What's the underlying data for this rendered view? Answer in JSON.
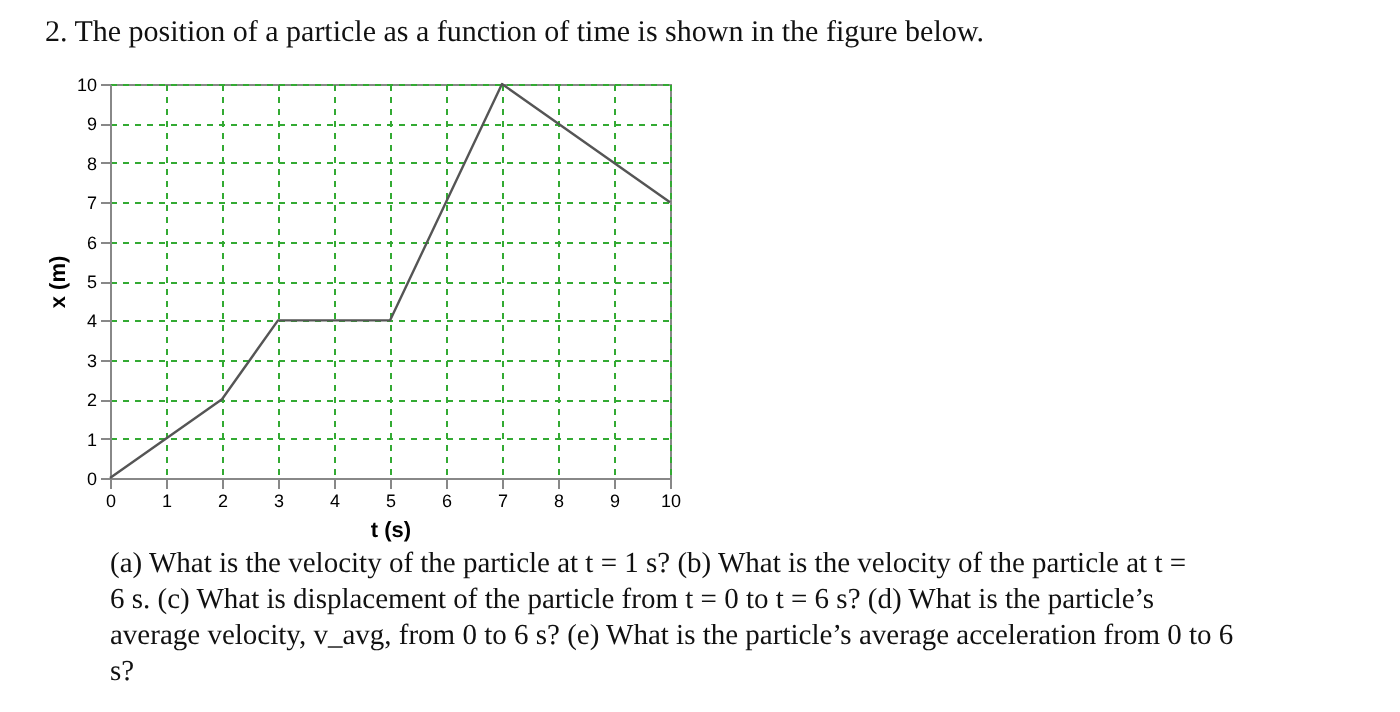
{
  "chart_data": {
    "type": "line",
    "title": "2. The position of a particle as a function of time is shown in the figure below.",
    "xlabel": "t (s)",
    "ylabel": "x (m)",
    "x": [
      0,
      2,
      3,
      5,
      7,
      10
    ],
    "series": [
      {
        "color": "#555555",
        "values": [
          0,
          2,
          4,
          4,
          10,
          7
        ]
      }
    ],
    "xlim": [
      0,
      10
    ],
    "xticks": [
      0,
      1,
      2,
      3,
      4,
      5,
      6,
      7,
      8,
      9,
      10
    ],
    "ylim": [
      0,
      10
    ],
    "yticks": [
      0,
      1,
      2,
      3,
      4,
      5,
      6,
      7,
      8,
      9,
      10
    ],
    "grid": true,
    "marker": "none",
    "line_style": "solid",
    "annotations": [
      "(a) What is the velocity of the particle at t = 1 s? (b) What is the velocity of the particle at t =\n6 s. (c) What is displacement of the particle from t = 0 to t = 6 s? (d) What is the particle’s\naverage velocity, v_avg, from 0 to 6 s? (e) What is the particle’s average acceleration from 0 to 6\ns?"
    ]
  }
}
